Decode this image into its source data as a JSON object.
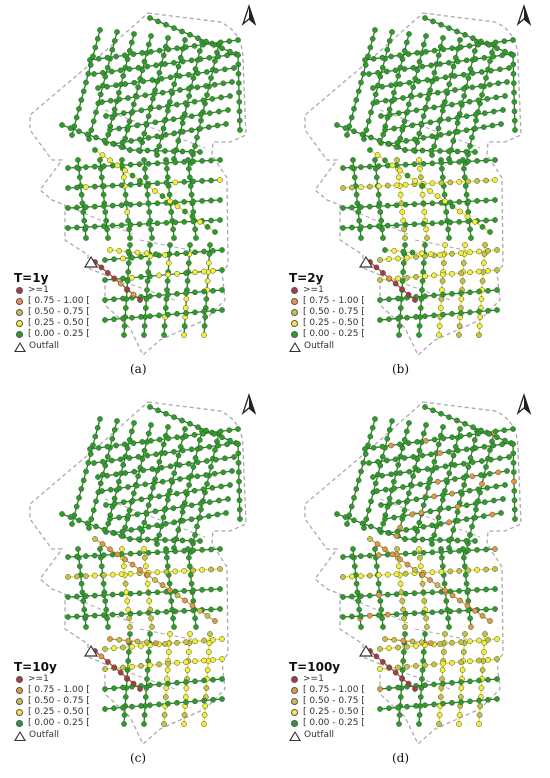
{
  "legend_colors": {
    "ge1": "#a83a44",
    "c075": "#e3964a",
    "c050": "#c9c04a",
    "c025": "#f7ec3c",
    "c000": "#2f9a2e",
    "pipe_green": "#2a7d27",
    "pipe_yellow": "#e3d83a",
    "pipe_orange": "#e08a3a",
    "pipe_red": "#b0444e",
    "boundary": "#aaaaaa"
  },
  "legend_classes": [
    ">=1",
    "[ 0.75 - 1.00 [",
    "[ 0.50 - 0.75 [",
    "[ 0.25 - 0.50 [",
    "[ 0.00 - 0.25 ["
  ],
  "outfall_label": "Outfall",
  "north_arrow_icon": "north-arrow-icon",
  "panels": [
    {
      "title": "T=1y",
      "caption": "(a)",
      "severity": 0
    },
    {
      "title": "T=2y",
      "caption": "(b)",
      "severity": 1
    },
    {
      "title": "T=10y",
      "caption": "(c)",
      "severity": 2
    },
    {
      "title": "T=100y",
      "caption": "(d)",
      "severity": 3
    }
  ]
}
